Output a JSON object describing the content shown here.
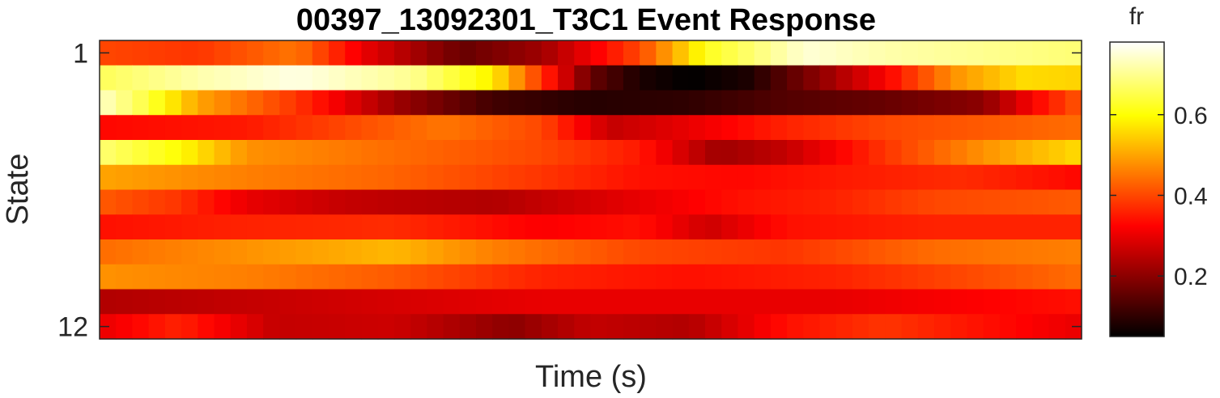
{
  "chart_data": {
    "type": "heatmap",
    "title": "00397_13092301_T3C1 Event Response",
    "xlabel": "Time (s)",
    "ylabel": "State",
    "y_tick_labels": [
      "1",
      "12"
    ],
    "y_tick_positions": [
      1,
      12
    ],
    "colorbar": {
      "label": "fr",
      "colormap": "hot",
      "range": [
        0.05,
        0.78
      ],
      "ticks": [
        0.2,
        0.4,
        0.6
      ],
      "tick_labels": [
        "0.2",
        "0.4",
        "0.6"
      ]
    },
    "n_rows": 12,
    "n_time_bins": 60,
    "rows": [
      {
        "state": 1,
        "profile": [
          [
            0,
            0.4
          ],
          [
            10,
            0.38
          ],
          [
            20,
            0.45
          ],
          [
            27,
            0.3
          ],
          [
            37,
            0.16
          ],
          [
            45,
            0.22
          ],
          [
            55,
            0.4
          ],
          [
            62,
            0.62
          ],
          [
            72,
            0.75
          ],
          [
            80,
            0.72
          ],
          [
            100,
            0.68
          ]
        ]
      },
      {
        "state": 2,
        "profile": [
          [
            0,
            0.66
          ],
          [
            10,
            0.72
          ],
          [
            20,
            0.76
          ],
          [
            32,
            0.7
          ],
          [
            40,
            0.58
          ],
          [
            45,
            0.38
          ],
          [
            50,
            0.16
          ],
          [
            55,
            0.08
          ],
          [
            60,
            0.05
          ],
          [
            66,
            0.08
          ],
          [
            72,
            0.18
          ],
          [
            80,
            0.32
          ],
          [
            87,
            0.48
          ],
          [
            94,
            0.56
          ],
          [
            100,
            0.55
          ]
        ]
      },
      {
        "state": 3,
        "profile": [
          [
            0,
            0.74
          ],
          [
            5,
            0.64
          ],
          [
            10,
            0.5
          ],
          [
            20,
            0.38
          ],
          [
            30,
            0.22
          ],
          [
            40,
            0.12
          ],
          [
            50,
            0.09
          ],
          [
            60,
            0.1
          ],
          [
            70,
            0.14
          ],
          [
            80,
            0.16
          ],
          [
            90,
            0.2
          ],
          [
            95,
            0.32
          ],
          [
            100,
            0.42
          ]
        ]
      },
      {
        "state": 4,
        "profile": [
          [
            0,
            0.33
          ],
          [
            15,
            0.35
          ],
          [
            25,
            0.4
          ],
          [
            35,
            0.45
          ],
          [
            45,
            0.4
          ],
          [
            52,
            0.26
          ],
          [
            60,
            0.3
          ],
          [
            70,
            0.36
          ],
          [
            80,
            0.4
          ],
          [
            90,
            0.42
          ],
          [
            100,
            0.44
          ]
        ]
      },
      {
        "state": 5,
        "profile": [
          [
            0,
            0.68
          ],
          [
            8,
            0.6
          ],
          [
            15,
            0.48
          ],
          [
            30,
            0.44
          ],
          [
            45,
            0.4
          ],
          [
            55,
            0.35
          ],
          [
            63,
            0.22
          ],
          [
            70,
            0.26
          ],
          [
            80,
            0.38
          ],
          [
            90,
            0.48
          ],
          [
            100,
            0.56
          ]
        ]
      },
      {
        "state": 6,
        "profile": [
          [
            0,
            0.5
          ],
          [
            15,
            0.46
          ],
          [
            30,
            0.43
          ],
          [
            45,
            0.38
          ],
          [
            55,
            0.34
          ],
          [
            65,
            0.33
          ],
          [
            75,
            0.35
          ],
          [
            88,
            0.37
          ],
          [
            100,
            0.33
          ]
        ]
      },
      {
        "state": 7,
        "profile": [
          [
            0,
            0.42
          ],
          [
            8,
            0.38
          ],
          [
            15,
            0.3
          ],
          [
            25,
            0.26
          ],
          [
            40,
            0.24
          ],
          [
            55,
            0.3
          ],
          [
            65,
            0.34
          ],
          [
            75,
            0.36
          ],
          [
            85,
            0.4
          ],
          [
            100,
            0.42
          ]
        ]
      },
      {
        "state": 8,
        "profile": [
          [
            0,
            0.34
          ],
          [
            15,
            0.36
          ],
          [
            30,
            0.37
          ],
          [
            45,
            0.32
          ],
          [
            55,
            0.34
          ],
          [
            62,
            0.27
          ],
          [
            70,
            0.34
          ],
          [
            85,
            0.36
          ],
          [
            100,
            0.36
          ]
        ]
      },
      {
        "state": 9,
        "profile": [
          [
            0,
            0.44
          ],
          [
            15,
            0.48
          ],
          [
            30,
            0.52
          ],
          [
            40,
            0.46
          ],
          [
            55,
            0.4
          ],
          [
            70,
            0.38
          ],
          [
            85,
            0.44
          ],
          [
            100,
            0.46
          ]
        ]
      },
      {
        "state": 10,
        "profile": [
          [
            0,
            0.48
          ],
          [
            15,
            0.46
          ],
          [
            30,
            0.42
          ],
          [
            45,
            0.36
          ],
          [
            60,
            0.34
          ],
          [
            75,
            0.36
          ],
          [
            88,
            0.4
          ],
          [
            100,
            0.44
          ]
        ]
      },
      {
        "state": 11,
        "profile": [
          [
            0,
            0.24
          ],
          [
            15,
            0.26
          ],
          [
            30,
            0.28
          ],
          [
            45,
            0.3
          ],
          [
            60,
            0.3
          ],
          [
            75,
            0.3
          ],
          [
            88,
            0.32
          ],
          [
            100,
            0.34
          ]
        ]
      },
      {
        "state": 12,
        "profile": [
          [
            0,
            0.3
          ],
          [
            8,
            0.36
          ],
          [
            18,
            0.26
          ],
          [
            30,
            0.27
          ],
          [
            42,
            0.2
          ],
          [
            50,
            0.26
          ],
          [
            60,
            0.24
          ],
          [
            70,
            0.34
          ],
          [
            80,
            0.38
          ],
          [
            90,
            0.34
          ],
          [
            100,
            0.3
          ]
        ]
      }
    ]
  }
}
